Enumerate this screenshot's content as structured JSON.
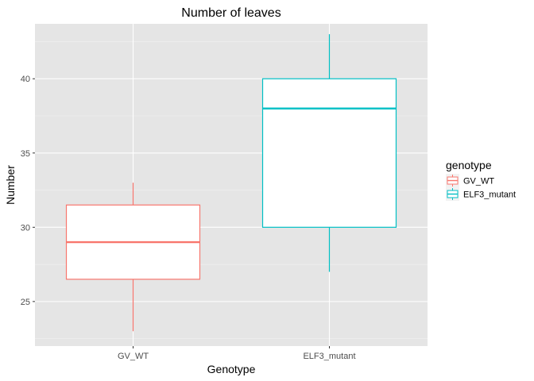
{
  "chart_data": {
    "type": "boxplot",
    "title": "Number of leaves",
    "xlabel": "Genotype",
    "ylabel": "Number",
    "ylim": [
      22.0,
      43.7
    ],
    "yticks": [
      25,
      30,
      35,
      40
    ],
    "grid": true,
    "background": "#e5e5e5",
    "legend": {
      "title": "genotype",
      "position": "right",
      "entries": [
        "GV_WT",
        "ELF3_mutant"
      ]
    },
    "categories": [
      "GV_WT",
      "ELF3_mutant"
    ],
    "series": [
      {
        "name": "GV_WT",
        "color": "#f8766d",
        "min": 23,
        "q1": 26.5,
        "median": 29,
        "q3": 31.5,
        "max": 33
      },
      {
        "name": "ELF3_mutant",
        "color": "#00bfc4",
        "min": 27,
        "q1": 30,
        "median": 38,
        "q3": 40,
        "max": 43
      }
    ]
  }
}
